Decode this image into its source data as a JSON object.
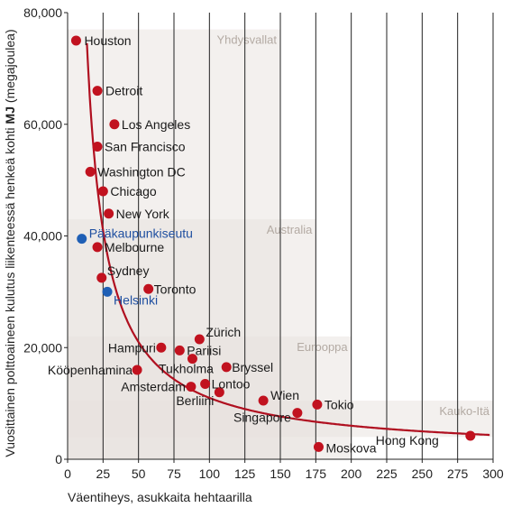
{
  "chart_data": {
    "type": "scatter",
    "title": "",
    "xlabel": "Väentiheys, asukkaita hehtaarilla",
    "ylabel_parts": [
      "Vuosittainen polttoaineen kulutus liikenteessä henkeä kohti ",
      "MJ",
      " (megajoulea)"
    ],
    "xlim": [
      0,
      300
    ],
    "ylim": [
      0,
      80000
    ],
    "x_ticks": [
      0,
      25,
      50,
      75,
      100,
      125,
      150,
      175,
      200,
      225,
      250,
      275,
      300
    ],
    "y_ticks": [
      {
        "value": 0,
        "label": "0"
      },
      {
        "value": 20000,
        "label": "20,000"
      },
      {
        "value": 40000,
        "label": "40,000"
      },
      {
        "value": 60000,
        "label": "60,000"
      },
      {
        "value": 80000,
        "label": "80,000"
      }
    ],
    "grid": "vertical",
    "colors": {
      "point": "#c1121f",
      "helsinki_point": "#1f5fb5",
      "helsinki_label": "#1f4fa0",
      "curve": "#b01020",
      "region_band": "#e8e2dd",
      "region_label": "#b3aaa3"
    },
    "regions": [
      {
        "name": "Yhdysvallat",
        "x": [
          0,
          150
        ],
        "y": [
          0,
          77000
        ]
      },
      {
        "name": "Australia",
        "x": [
          0,
          175
        ],
        "y": [
          0,
          43000
        ]
      },
      {
        "name": "Eurooppa",
        "x": [
          0,
          200
        ],
        "y": [
          0,
          22000
        ]
      },
      {
        "name": "Kauko-Itä",
        "x": [
          0,
          300
        ],
        "y": [
          4000,
          10500
        ]
      }
    ],
    "points": [
      {
        "name": "Houston",
        "x": 6,
        "y": 75000,
        "group": "usa"
      },
      {
        "name": "Detroit",
        "x": 21,
        "y": 66000,
        "group": "usa"
      },
      {
        "name": "Los Angeles",
        "x": 33,
        "y": 60000,
        "group": "usa"
      },
      {
        "name": "San Francisco",
        "x": 21,
        "y": 56000,
        "group": "usa"
      },
      {
        "name": "Washington DC",
        "x": 16,
        "y": 51500,
        "group": "usa"
      },
      {
        "name": "Chicago",
        "x": 25,
        "y": 48000,
        "group": "usa"
      },
      {
        "name": "New York",
        "x": 29,
        "y": 44000,
        "group": "usa"
      },
      {
        "name": "Pääkaupunkiseutu",
        "x": 10,
        "y": 39500,
        "group": "helsinki"
      },
      {
        "name": "Melbourne",
        "x": 21,
        "y": 38000,
        "group": "australia"
      },
      {
        "name": "Sydney",
        "x": 24,
        "y": 32500,
        "group": "australia"
      },
      {
        "name": "Helsinki",
        "x": 28,
        "y": 30000,
        "group": "helsinki"
      },
      {
        "name": "Toronto",
        "x": 57,
        "y": 30500,
        "group": "other"
      },
      {
        "name": "Zürich",
        "x": 93,
        "y": 21500,
        "group": "europe"
      },
      {
        "name": "Hampuri",
        "x": 66,
        "y": 20000,
        "group": "europe"
      },
      {
        "name": "Pariisi",
        "x": 79,
        "y": 19500,
        "group": "europe"
      },
      {
        "name": "Tukholma",
        "x": 88,
        "y": 18000,
        "group": "europe"
      },
      {
        "name": "Kööpenhamina",
        "x": 49,
        "y": 16000,
        "group": "europe"
      },
      {
        "name": "Bryssel",
        "x": 112,
        "y": 16500,
        "group": "europe"
      },
      {
        "name": "Lontoo",
        "x": 97,
        "y": 13500,
        "group": "europe"
      },
      {
        "name": "Amsterdam",
        "x": 87,
        "y": 13000,
        "group": "europe"
      },
      {
        "name": "Berliini",
        "x": 107,
        "y": 12000,
        "group": "europe"
      },
      {
        "name": "Wien",
        "x": 138,
        "y": 10500,
        "group": "europe"
      },
      {
        "name": "Tokio",
        "x": 176,
        "y": 9800,
        "group": "asia"
      },
      {
        "name": "Singapore",
        "x": 162,
        "y": 8300,
        "group": "asia"
      },
      {
        "name": "Moskova",
        "x": 177,
        "y": 2200,
        "group": "europe"
      },
      {
        "name": "Hong Kong",
        "x": 284,
        "y": 4200,
        "group": "asia"
      }
    ]
  }
}
